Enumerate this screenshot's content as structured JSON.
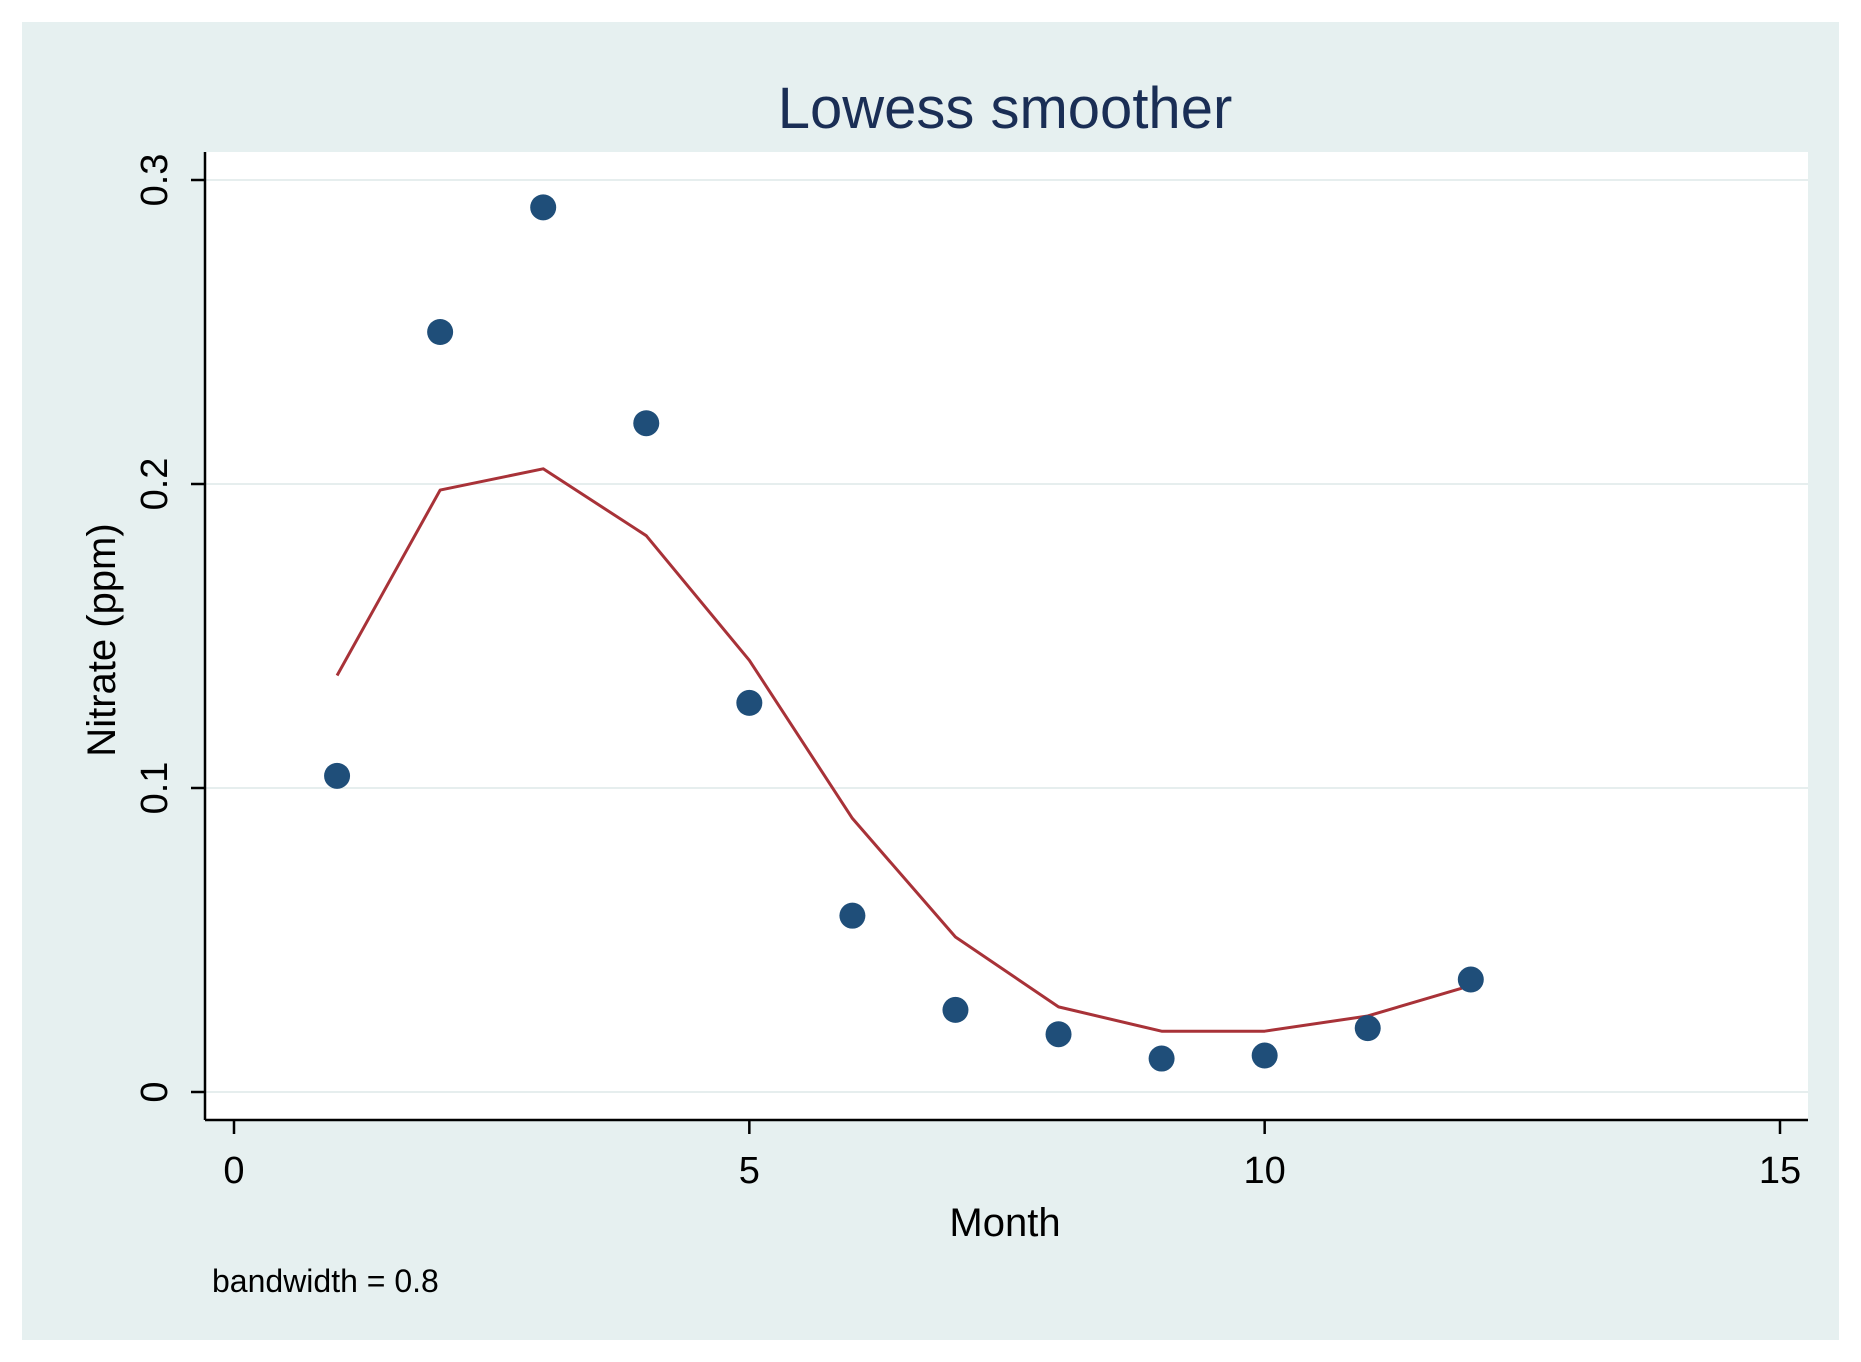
{
  "colors": {
    "background": "#ffffff",
    "panel": "#e6f0f0",
    "plot_area": "#ffffff",
    "gridline": "#e6eeee",
    "axis": "#000000",
    "title": "#1a2e55",
    "scatter": "#1f4e79",
    "line": "#a83238",
    "text": "#000000"
  },
  "chart_data": {
    "type": "scatter",
    "title": "Lowess smoother",
    "xlabel": "Month",
    "ylabel": "Nitrate (ppm)",
    "note": "bandwidth = 0.8",
    "xlim": [
      0,
      15
    ],
    "ylim": [
      0,
      0.3
    ],
    "xticks": [
      0,
      5,
      10,
      15
    ],
    "yticks": [
      0,
      0.1,
      0.2,
      0.3
    ],
    "xtick_labels": [
      "0",
      "5",
      "10",
      "15"
    ],
    "ytick_labels": [
      "0",
      "0.1",
      "0.2",
      "0.3"
    ],
    "grid": true,
    "series": [
      {
        "name": "Nitrate (ppm)",
        "kind": "scatter",
        "x": [
          1,
          2,
          3,
          4,
          5,
          6,
          7,
          8,
          9,
          10,
          11,
          12
        ],
        "y": [
          0.104,
          0.25,
          0.291,
          0.22,
          0.128,
          0.058,
          0.027,
          0.019,
          0.011,
          0.012,
          0.021,
          0.037
        ]
      },
      {
        "name": "Lowess",
        "kind": "line",
        "x": [
          1,
          2,
          3,
          4,
          5,
          6,
          7,
          8,
          9,
          10,
          11,
          12
        ],
        "y": [
          0.137,
          0.198,
          0.205,
          0.183,
          0.142,
          0.09,
          0.051,
          0.028,
          0.02,
          0.02,
          0.025,
          0.035
        ]
      }
    ]
  }
}
